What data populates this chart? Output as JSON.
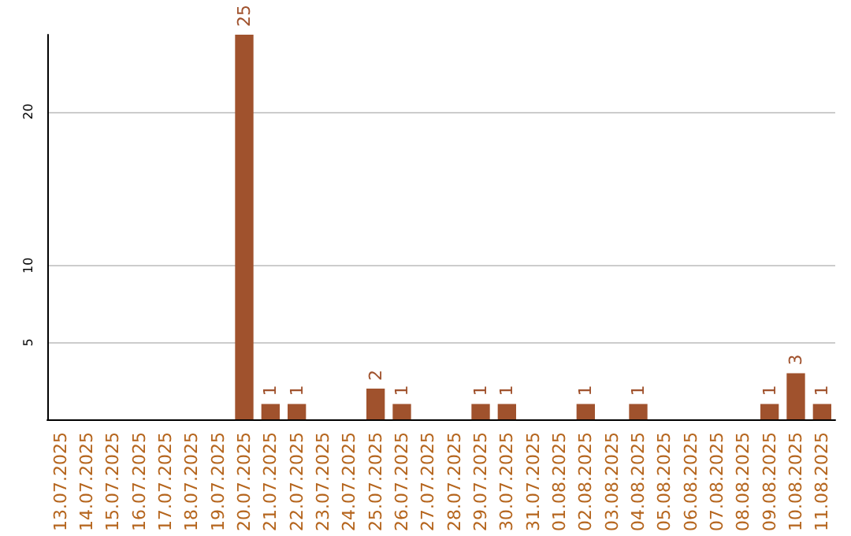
{
  "chart_data": {
    "type": "bar",
    "categories": [
      "13.07.2025",
      "14.07.2025",
      "15.07.2025",
      "16.07.2025",
      "17.07.2025",
      "18.07.2025",
      "19.07.2025",
      "20.07.2025",
      "21.07.2025",
      "22.07.2025",
      "23.07.2025",
      "24.07.2025",
      "25.07.2025",
      "26.07.2025",
      "27.07.2025",
      "28.07.2025",
      "29.07.2025",
      "30.07.2025",
      "31.07.2025",
      "01.08.2025",
      "02.08.2025",
      "03.08.2025",
      "04.08.2025",
      "05.08.2025",
      "06.08.2025",
      "07.08.2025",
      "08.08.2025",
      "09.08.2025",
      "10.08.2025",
      "11.08.2025"
    ],
    "values": [
      0,
      0,
      0,
      0,
      0,
      0,
      0,
      25,
      1,
      1,
      0,
      0,
      2,
      1,
      0,
      0,
      1,
      1,
      0,
      0,
      1,
      0,
      1,
      0,
      0,
      0,
      0,
      1,
      3,
      1
    ],
    "value_labels": [
      null,
      null,
      null,
      null,
      null,
      null,
      null,
      "25",
      "1",
      "1",
      null,
      null,
      "2",
      "1",
      null,
      null,
      "1",
      "1",
      null,
      null,
      "1",
      null,
      "1",
      null,
      null,
      null,
      null,
      "1",
      "3",
      "1"
    ],
    "color": "#a0522d",
    "ylim": [
      0,
      25
    ],
    "yticks": [
      5,
      10,
      20
    ],
    "grid": "y"
  }
}
